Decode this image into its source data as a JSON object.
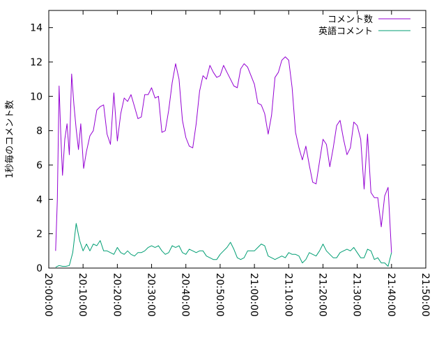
{
  "chart_data": {
    "type": "line",
    "title": "",
    "xlabel": "",
    "ylabel": "1秒毎のコメント数",
    "xlim": [
      "20:00:00",
      "21:50:00"
    ],
    "ylim": [
      0,
      15
    ],
    "x_ticks": [
      "20:00:00",
      "20:10:00",
      "20:20:00",
      "20:30:00",
      "20:40:00",
      "20:50:00",
      "21:00:00",
      "21:10:00",
      "21:20:00",
      "21:30:00",
      "21:40:00",
      "21:50:00"
    ],
    "y_ticks": [
      "0",
      "2",
      "4",
      "6",
      "8",
      "10",
      "12",
      "14"
    ],
    "grid": false,
    "legend_position": "top-right",
    "series": [
      {
        "name": "コメント数",
        "color": "#9400d3",
        "points": [
          [
            "20:02:00",
            1.0
          ],
          [
            "20:02:30",
            4.0
          ],
          [
            "20:03:00",
            10.6
          ],
          [
            "20:03:30",
            7.8
          ],
          [
            "20:04:00",
            5.4
          ],
          [
            "20:04:40",
            7.5
          ],
          [
            "20:05:20",
            8.4
          ],
          [
            "20:06:00",
            6.6
          ],
          [
            "20:06:40",
            11.3
          ],
          [
            "20:07:20",
            9.5
          ],
          [
            "20:08:00",
            8.1
          ],
          [
            "20:08:40",
            6.9
          ],
          [
            "20:09:20",
            8.4
          ],
          [
            "20:10:10",
            5.8
          ],
          [
            "20:11:00",
            6.8
          ],
          [
            "20:12:00",
            7.7
          ],
          [
            "20:13:00",
            8.0
          ],
          [
            "20:14:00",
            9.2
          ],
          [
            "20:15:00",
            9.4
          ],
          [
            "20:16:00",
            9.5
          ],
          [
            "20:17:00",
            7.8
          ],
          [
            "20:18:00",
            7.2
          ],
          [
            "20:19:00",
            10.2
          ],
          [
            "20:20:00",
            7.4
          ],
          [
            "20:21:00",
            9.0
          ],
          [
            "20:22:00",
            9.9
          ],
          [
            "20:23:00",
            9.7
          ],
          [
            "20:24:00",
            10.1
          ],
          [
            "20:25:00",
            9.4
          ],
          [
            "20:26:00",
            8.7
          ],
          [
            "20:27:00",
            8.8
          ],
          [
            "20:28:00",
            10.1
          ],
          [
            "20:29:00",
            10.1
          ],
          [
            "20:30:00",
            10.5
          ],
          [
            "20:31:00",
            9.9
          ],
          [
            "20:32:00",
            10.0
          ],
          [
            "20:33:00",
            7.9
          ],
          [
            "20:34:00",
            8.0
          ],
          [
            "20:35:00",
            9.2
          ],
          [
            "20:36:00",
            10.8
          ],
          [
            "20:37:00",
            11.9
          ],
          [
            "20:38:00",
            11.0
          ],
          [
            "20:39:00",
            8.6
          ],
          [
            "20:40:00",
            7.6
          ],
          [
            "20:41:00",
            7.1
          ],
          [
            "20:42:00",
            7.0
          ],
          [
            "20:43:00",
            8.4
          ],
          [
            "20:44:00",
            10.3
          ],
          [
            "20:45:00",
            11.2
          ],
          [
            "20:46:00",
            11.0
          ],
          [
            "20:47:00",
            11.8
          ],
          [
            "20:48:00",
            11.4
          ],
          [
            "20:49:00",
            11.1
          ],
          [
            "20:50:00",
            11.2
          ],
          [
            "20:51:00",
            11.8
          ],
          [
            "20:52:00",
            11.4
          ],
          [
            "20:53:00",
            11.0
          ],
          [
            "20:54:00",
            10.6
          ],
          [
            "20:55:00",
            10.5
          ],
          [
            "20:56:00",
            11.6
          ],
          [
            "20:57:00",
            11.9
          ],
          [
            "20:58:00",
            11.7
          ],
          [
            "20:59:00",
            11.2
          ],
          [
            "21:00:00",
            10.7
          ],
          [
            "21:01:00",
            9.6
          ],
          [
            "21:02:00",
            9.5
          ],
          [
            "21:03:00",
            9.0
          ],
          [
            "21:04:00",
            7.8
          ],
          [
            "21:05:00",
            8.9
          ],
          [
            "21:06:00",
            11.1
          ],
          [
            "21:07:00",
            11.4
          ],
          [
            "21:08:00",
            12.1
          ],
          [
            "21:09:00",
            12.3
          ],
          [
            "21:10:00",
            12.1
          ],
          [
            "21:11:00",
            10.5
          ],
          [
            "21:12:00",
            7.9
          ],
          [
            "21:13:00",
            7.0
          ],
          [
            "21:14:00",
            6.3
          ],
          [
            "21:15:00",
            7.1
          ],
          [
            "21:16:00",
            6.0
          ],
          [
            "21:17:00",
            5.0
          ],
          [
            "21:18:00",
            4.9
          ],
          [
            "21:19:00",
            6.2
          ],
          [
            "21:20:00",
            7.5
          ],
          [
            "21:21:00",
            7.2
          ],
          [
            "21:22:00",
            5.9
          ],
          [
            "21:23:00",
            7.0
          ],
          [
            "21:24:00",
            8.3
          ],
          [
            "21:25:00",
            8.6
          ],
          [
            "21:26:00",
            7.5
          ],
          [
            "21:27:00",
            6.6
          ],
          [
            "21:28:00",
            7.0
          ],
          [
            "21:29:00",
            8.5
          ],
          [
            "21:30:00",
            8.3
          ],
          [
            "21:31:00",
            7.5
          ],
          [
            "21:32:00",
            4.6
          ],
          [
            "21:33:00",
            7.8
          ],
          [
            "21:34:00",
            4.4
          ],
          [
            "21:35:00",
            4.1
          ],
          [
            "21:36:00",
            4.1
          ],
          [
            "21:37:00",
            2.4
          ],
          [
            "21:38:00",
            4.2
          ],
          [
            "21:39:00",
            4.7
          ],
          [
            "21:40:00",
            0.9
          ]
        ]
      },
      {
        "name": "英語コメント",
        "color": "#009e73",
        "points": [
          [
            "20:02:00",
            0.05
          ],
          [
            "20:03:00",
            0.15
          ],
          [
            "20:04:00",
            0.1
          ],
          [
            "20:05:00",
            0.1
          ],
          [
            "20:06:00",
            0.15
          ],
          [
            "20:07:00",
            0.9
          ],
          [
            "20:08:00",
            2.6
          ],
          [
            "20:09:00",
            1.6
          ],
          [
            "20:10:00",
            1.0
          ],
          [
            "20:11:00",
            1.4
          ],
          [
            "20:12:00",
            1.0
          ],
          [
            "20:13:00",
            1.4
          ],
          [
            "20:14:00",
            1.3
          ],
          [
            "20:15:00",
            1.6
          ],
          [
            "20:16:00",
            1.0
          ],
          [
            "20:17:00",
            1.0
          ],
          [
            "20:18:00",
            0.9
          ],
          [
            "20:19:00",
            0.8
          ],
          [
            "20:20:00",
            1.2
          ],
          [
            "20:21:00",
            0.9
          ],
          [
            "20:22:00",
            0.8
          ],
          [
            "20:23:00",
            1.0
          ],
          [
            "20:24:00",
            0.8
          ],
          [
            "20:25:00",
            0.7
          ],
          [
            "20:26:00",
            0.9
          ],
          [
            "20:27:00",
            0.9
          ],
          [
            "20:28:00",
            1.0
          ],
          [
            "20:29:00",
            1.2
          ],
          [
            "20:30:00",
            1.3
          ],
          [
            "20:31:00",
            1.2
          ],
          [
            "20:32:00",
            1.3
          ],
          [
            "20:33:00",
            1.0
          ],
          [
            "20:34:00",
            0.8
          ],
          [
            "20:35:00",
            0.9
          ],
          [
            "20:36:00",
            1.3
          ],
          [
            "20:37:00",
            1.2
          ],
          [
            "20:38:00",
            1.3
          ],
          [
            "20:39:00",
            0.9
          ],
          [
            "20:40:00",
            0.8
          ],
          [
            "20:41:00",
            1.1
          ],
          [
            "20:42:00",
            1.0
          ],
          [
            "20:43:00",
            0.9
          ],
          [
            "20:44:00",
            1.0
          ],
          [
            "20:45:00",
            1.0
          ],
          [
            "20:46:00",
            0.7
          ],
          [
            "20:47:00",
            0.6
          ],
          [
            "20:48:00",
            0.5
          ],
          [
            "20:49:00",
            0.5
          ],
          [
            "20:50:00",
            0.8
          ],
          [
            "20:51:00",
            1.0
          ],
          [
            "20:52:00",
            1.2
          ],
          [
            "20:53:00",
            1.5
          ],
          [
            "20:54:00",
            1.1
          ],
          [
            "20:55:00",
            0.6
          ],
          [
            "20:56:00",
            0.5
          ],
          [
            "20:57:00",
            0.6
          ],
          [
            "20:58:00",
            1.0
          ],
          [
            "20:59:00",
            1.0
          ],
          [
            "21:00:00",
            1.0
          ],
          [
            "21:01:00",
            1.2
          ],
          [
            "21:02:00",
            1.4
          ],
          [
            "21:03:00",
            1.3
          ],
          [
            "21:04:00",
            0.7
          ],
          [
            "21:05:00",
            0.6
          ],
          [
            "21:06:00",
            0.5
          ],
          [
            "21:07:00",
            0.6
          ],
          [
            "21:08:00",
            0.7
          ],
          [
            "21:09:00",
            0.6
          ],
          [
            "21:10:00",
            0.9
          ],
          [
            "21:11:00",
            0.8
          ],
          [
            "21:12:00",
            0.8
          ],
          [
            "21:13:00",
            0.7
          ],
          [
            "21:14:00",
            0.3
          ],
          [
            "21:15:00",
            0.5
          ],
          [
            "21:16:00",
            0.9
          ],
          [
            "21:17:00",
            0.8
          ],
          [
            "21:18:00",
            0.7
          ],
          [
            "21:19:00",
            1.0
          ],
          [
            "21:20:00",
            1.4
          ],
          [
            "21:21:00",
            1.0
          ],
          [
            "21:22:00",
            0.8
          ],
          [
            "21:23:00",
            0.6
          ],
          [
            "21:24:00",
            0.6
          ],
          [
            "21:25:00",
            0.9
          ],
          [
            "21:26:00",
            1.0
          ],
          [
            "21:27:00",
            1.1
          ],
          [
            "21:28:00",
            1.0
          ],
          [
            "21:29:00",
            1.2
          ],
          [
            "21:30:00",
            0.9
          ],
          [
            "21:31:00",
            0.6
          ],
          [
            "21:32:00",
            0.6
          ],
          [
            "21:33:00",
            1.1
          ],
          [
            "21:34:00",
            1.0
          ],
          [
            "21:35:00",
            0.5
          ],
          [
            "21:36:00",
            0.6
          ],
          [
            "21:37:00",
            0.3
          ],
          [
            "21:38:00",
            0.3
          ],
          [
            "21:39:00",
            0.1
          ],
          [
            "21:40:00",
            0.9
          ]
        ]
      }
    ]
  }
}
